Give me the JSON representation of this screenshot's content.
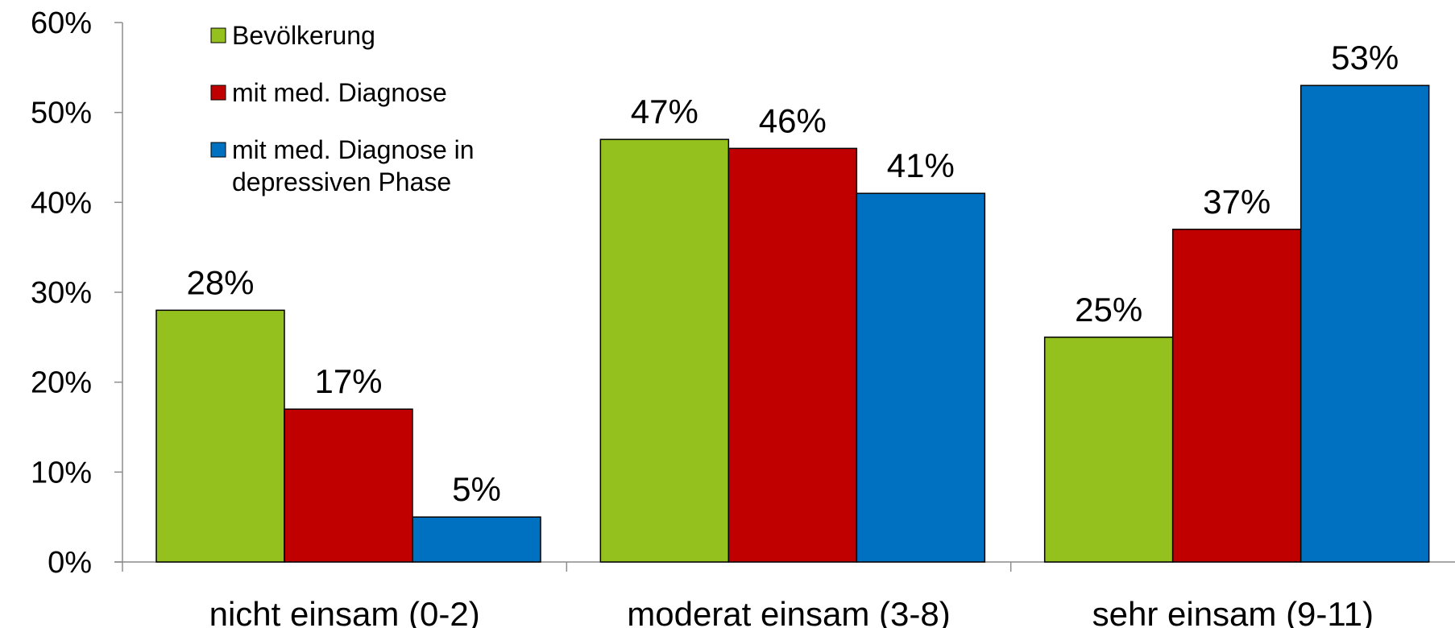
{
  "chart_data": {
    "type": "bar",
    "title": "",
    "xlabel": "",
    "ylabel": "",
    "ylim": [
      0,
      60
    ],
    "yticks": [
      0,
      10,
      20,
      30,
      40,
      50,
      60
    ],
    "ytick_labels": [
      "0%",
      "10%",
      "20%",
      "30%",
      "40%",
      "50%",
      "60%"
    ],
    "grid": false,
    "legend_position": "top-left",
    "categories": [
      "nicht einsam (0-2)",
      "moderat einsam (3-8)",
      "sehr einsam (9-11)"
    ],
    "series": [
      {
        "name": "Bevölkerung",
        "legend_lines": [
          "Bevölkerung"
        ],
        "color": "#95c11f",
        "values": [
          28,
          47,
          25
        ],
        "labels": [
          "28%",
          "47%",
          "25%"
        ]
      },
      {
        "name": "mit med. Diagnose",
        "legend_lines": [
          "mit med. Diagnose"
        ],
        "color": "#c00000",
        "values": [
          17,
          46,
          37
        ],
        "labels": [
          "17%",
          "46%",
          "37%"
        ]
      },
      {
        "name": "mit med. Diagnose in depressiven Phase",
        "legend_lines": [
          "mit med. Diagnose in",
          "depressiven Phase"
        ],
        "color": "#0070c0",
        "values": [
          5,
          41,
          53
        ],
        "labels": [
          "5%",
          "41%",
          "53%"
        ]
      }
    ]
  }
}
